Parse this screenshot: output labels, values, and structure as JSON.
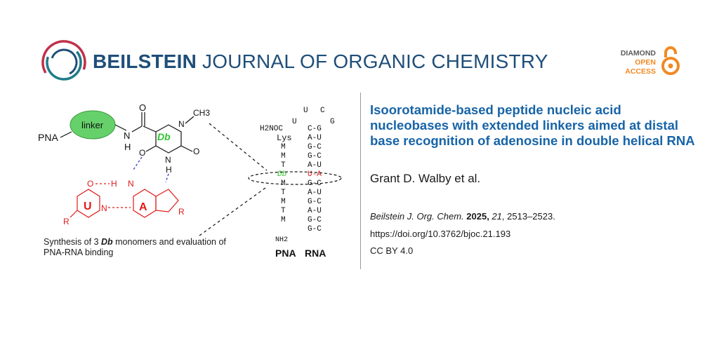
{
  "journal": {
    "brand_bold": "BEILSTEIN",
    "brand_light": "JOURNAL OF ORGANIC CHEMISTRY",
    "badge": {
      "line1": "DIAMOND",
      "line2": "OPEN",
      "line3": "ACCESS"
    },
    "colors": {
      "brand": "#1f4e79",
      "title": "#1764a8",
      "badge_orange": "#f08a24",
      "logo_red": "#c0304a",
      "logo_teal": "#1e7c8a"
    }
  },
  "article": {
    "title": "Isoorotamide-based peptide nucleic acid nucleobases with extended linkers aimed at distal base recognition of adenosine in double helical RNA",
    "authors": "Grant D. Walby et al.",
    "journal_abbrev": "Beilstein J. Org. Chem.",
    "year": "2025",
    "volume": "21",
    "pages": "2513–2523.",
    "doi": "https://doi.org/10.3762/bjoc.21.193",
    "license": "CC BY 4.0"
  },
  "graphic": {
    "caption_pre": "Synthesis of 3 ",
    "caption_db": "Db",
    "caption_post": " monomers and evaluation of PNA-RNA binding",
    "labels": {
      "pna": "PNA",
      "linker": "linker",
      "db": "Db",
      "ch3": "CH3",
      "u": "U",
      "a": "A",
      "n": "N",
      "h": "H",
      "o": "O",
      "r": "R",
      "h2noc": "H2NOC",
      "lys": "Lys",
      "nh2": "NH2",
      "pna_col": "PNA",
      "rna_col": "RNA"
    },
    "loop": [
      "U",
      "C",
      "U",
      "G"
    ],
    "pna_strand": [
      "M",
      "M",
      "T",
      "Db",
      "M",
      "T",
      "M",
      "T",
      "M"
    ],
    "rna_pairs": [
      "C-G",
      "A-U",
      "G-C",
      "G-C",
      "A-U",
      "U-A",
      "G-C",
      "A-U",
      "G-C",
      "A-U",
      "G-C",
      "G-C"
    ]
  }
}
